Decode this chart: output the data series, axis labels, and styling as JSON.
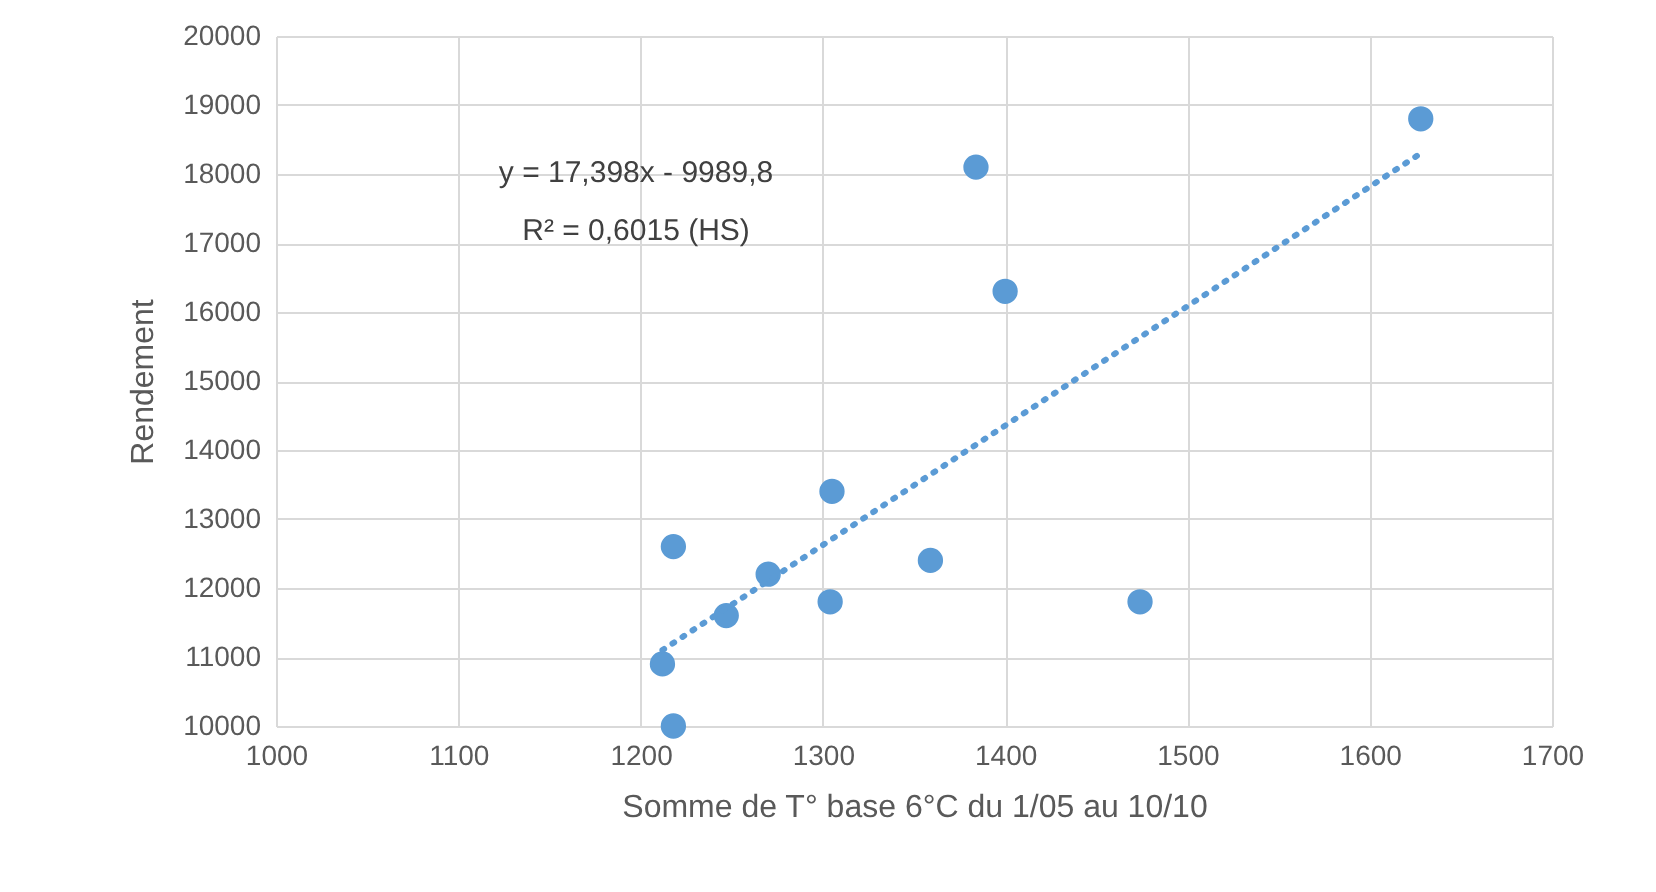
{
  "chart_data": {
    "type": "scatter",
    "xlabel": "Somme de T° base 6°C du 1/05 au 10/10",
    "ylabel": "Rendement",
    "annotations": [
      "y = 17,398x - 9989,8",
      "R² = 0,6015 (HS)"
    ],
    "series": [
      {
        "color": "#5b9bd5",
        "marker": "circle",
        "x": [
          1212,
          1218,
          1218,
          1247,
          1270,
          1304,
          1305,
          1359,
          1384,
          1400,
          1474,
          1628
        ],
        "values": [
          10900,
          10000,
          12600,
          11600,
          12200,
          11800,
          13400,
          12400,
          18100,
          16300,
          11800,
          18800
        ]
      },
      {
        "type": "line",
        "color": "#5b9bd5",
        "line_style": "dotted",
        "x": [
          1212,
          1628
        ],
        "values": [
          11100,
          18300
        ]
      }
    ],
    "xlim": [
      1000,
      1700
    ],
    "xticks": [
      1000,
      1100,
      1200,
      1300,
      1400,
      1500,
      1600,
      1700
    ],
    "ylim": [
      10000,
      20000
    ],
    "yticks": [
      10000,
      11000,
      12000,
      13000,
      14000,
      15000,
      16000,
      17000,
      18000,
      19000,
      20000
    ],
    "grid": true
  }
}
